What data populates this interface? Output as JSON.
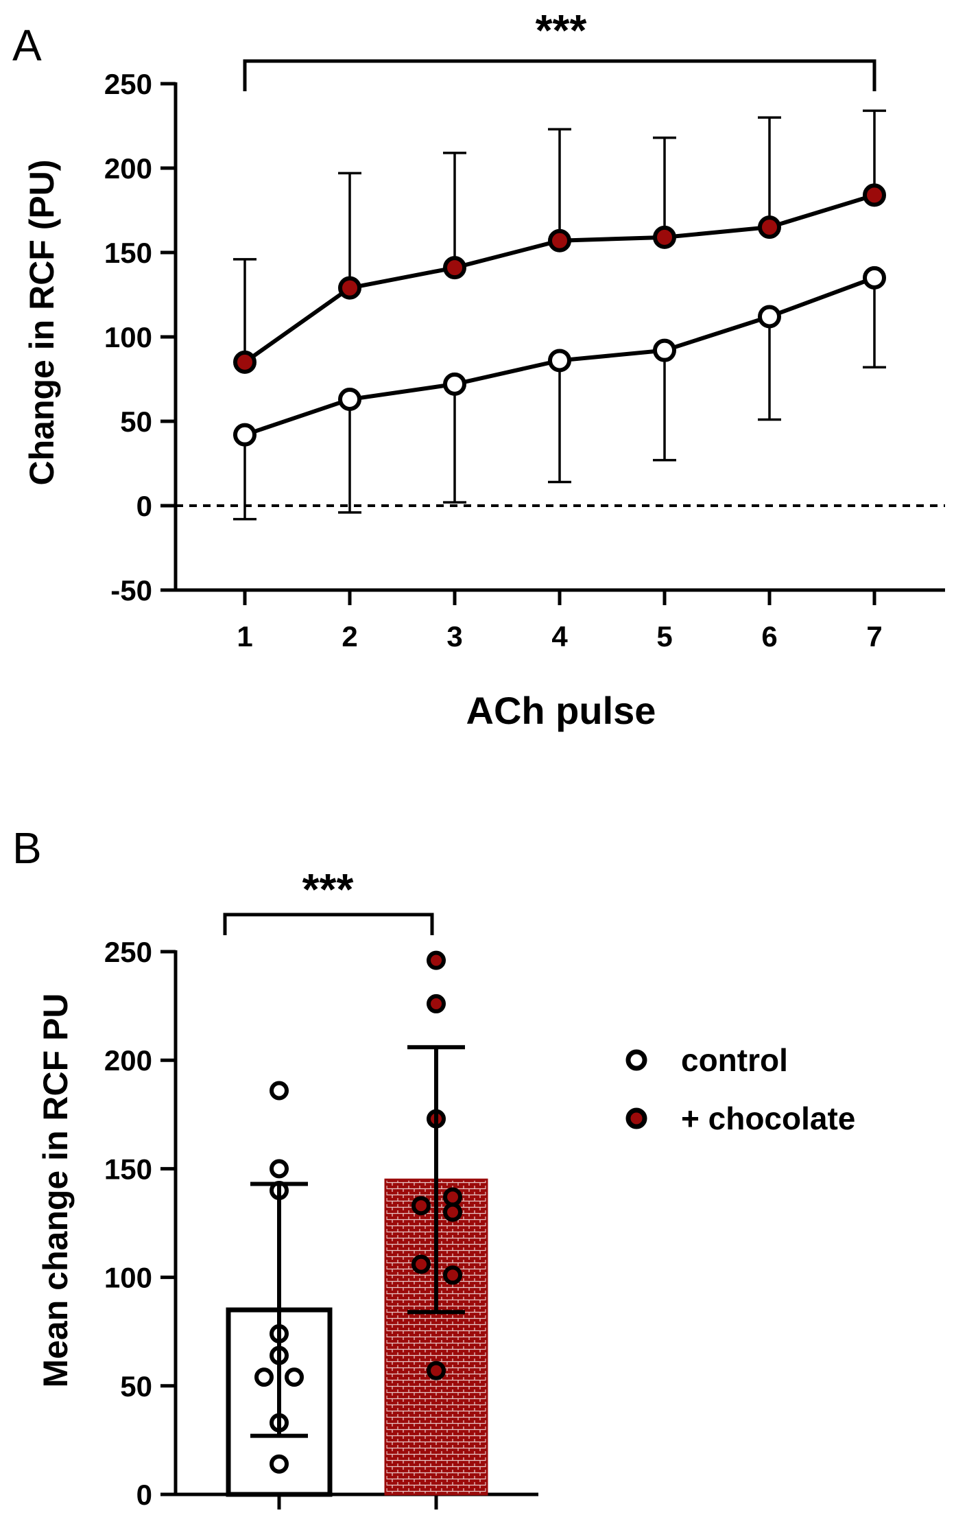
{
  "colors": {
    "chocolate": "#9b0a0a",
    "control": "#ffffff",
    "ink": "#000000"
  },
  "chart_data": [
    {
      "panel": "A",
      "type": "line",
      "xlabel": "ACh pulse",
      "ylabel": "Change in RCF (PU)",
      "x": [
        1,
        2,
        3,
        4,
        5,
        6,
        7
      ],
      "xticks": [
        "1",
        "2",
        "3",
        "4",
        "5",
        "6",
        "7"
      ],
      "ylim": [
        -50,
        250
      ],
      "yticks": [
        "-50",
        "0",
        "50",
        "100",
        "150",
        "200",
        "250"
      ],
      "reference_line": 0,
      "significance": "***",
      "series": [
        {
          "name": "control",
          "values": [
            42,
            63,
            72,
            86,
            92,
            112,
            135
          ],
          "sd": [
            50,
            67,
            70,
            72,
            65,
            61,
            53
          ],
          "errorbar": "lower"
        },
        {
          "name": "+ chocolate",
          "values": [
            85,
            129,
            141,
            157,
            159,
            165,
            184
          ],
          "sd": [
            61,
            68,
            68,
            66,
            59,
            65,
            50
          ],
          "errorbar": "upper"
        }
      ]
    },
    {
      "panel": "B",
      "type": "bar",
      "ylabel": "Mean change in RCF PU",
      "categories": [
        "control",
        "+ chocolate"
      ],
      "ylim": [
        0,
        250
      ],
      "yticks": [
        "0",
        "50",
        "100",
        "150",
        "200",
        "250"
      ],
      "significance": "***",
      "legend": [
        "control",
        "+ chocolate"
      ],
      "series": [
        {
          "name": "control",
          "mean": 85,
          "sd": 58,
          "points": [
            186,
            150,
            140,
            74,
            64,
            54,
            54,
            33,
            14
          ]
        },
        {
          "name": "+ chocolate",
          "mean": 145,
          "sd": 61,
          "points": [
            246,
            226,
            173,
            137,
            133,
            130,
            106,
            101,
            57
          ]
        }
      ]
    }
  ]
}
